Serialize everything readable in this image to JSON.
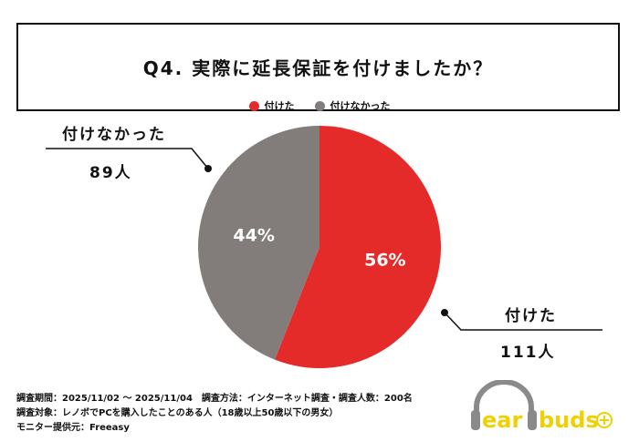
{
  "title": "Q4. 実際に延長保証を付けましたか？",
  "chart_data": {
    "type": "pie",
    "title": "Q4. 実際に延長保証を付けましたか？",
    "categories": [
      "付けた",
      "付けなかった"
    ],
    "values": [
      56,
      44
    ],
    "counts": [
      111,
      89
    ],
    "labels": [
      "56%",
      "44%"
    ],
    "count_labels": [
      "111人",
      "89人"
    ],
    "colors": [
      "#e52a2a",
      "#827c7b"
    ],
    "legend_placement": "top"
  },
  "footer": {
    "line1": "調査期間：2025/11/02 ～ 2025/11/04　調査方法：インターネット調査・調査人数：200名",
    "line2": "調査対象：レノボでPCを購入したことのある人（18歳以上50歳以下の男女）",
    "line3": "モニター提供元：Freeasy"
  },
  "logo": {
    "text": "earbuds",
    "colors": {
      "text": "#f0d000",
      "headphone": "#8a8a8a"
    }
  }
}
